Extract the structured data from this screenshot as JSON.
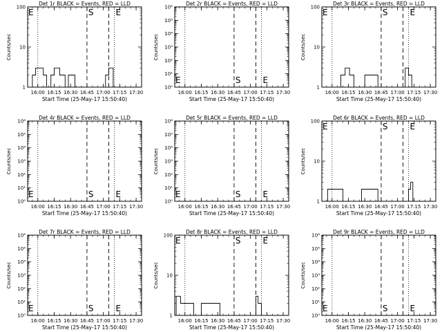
{
  "axis_common": {
    "xlabel": "Start Time (25-May-17 15:50:40)",
    "ylabel": "Counts/sec",
    "x_range": [
      "15:50:40",
      "17:35:00"
    ],
    "x_ticks": [
      "16:00",
      "16:15",
      "16:30",
      "16:45",
      "17:00",
      "17:15",
      "17:30"
    ],
    "dotted_lines": [
      "16:00",
      "17:10",
      "17:35"
    ],
    "dashed_lines": [
      "16:45",
      "17:05"
    ],
    "markers": [
      {
        "label": "S",
        "at": "16:45"
      },
      {
        "label": "E",
        "at": "17:10"
      }
    ]
  },
  "chart_data": [
    {
      "type": "line",
      "title": "Det 1r BLACK = Events, RED = LLD",
      "ylabel": "Counts/sec",
      "xlabel": "Start Time (25-May-17 15:50:40)",
      "log_scale": true,
      "ylim": [
        1,
        100
      ],
      "y_ticks": [
        "1",
        "10",
        "100"
      ],
      "marker_row": "top",
      "series": [
        {
          "name": "Events",
          "color": "#000000",
          "x": [
            "15:55",
            "15:55",
            "15:58",
            "15:58",
            "16:05",
            "16:05",
            "16:08",
            "16:08",
            "16:12",
            "16:12",
            "16:15",
            "16:15",
            "16:20",
            "16:20",
            "16:25",
            "16:25",
            "16:28",
            "16:28",
            "16:34",
            "16:34",
            "16:38",
            "16:38",
            "17:02",
            "17:02",
            "17:05",
            "17:05",
            "17:09",
            "17:09"
          ],
          "y": [
            1,
            2,
            2,
            3,
            3,
            2,
            2,
            1,
            1,
            2,
            2,
            3,
            3,
            2,
            2,
            1,
            1,
            2,
            2,
            1,
            1,
            1,
            1,
            2,
            2,
            3,
            3,
            1
          ]
        }
      ]
    },
    {
      "type": "line",
      "title": "Det 2r BLACK = Events, RED = LLD",
      "ylabel": "Counts/sec",
      "xlabel": "Start Time (25-May-17 15:50:40)",
      "log_scale": true,
      "ylim": [
        1,
        1000000
      ],
      "y_ticks": [
        "10⁰",
        "10¹",
        "10²",
        "10³",
        "10⁴",
        "10⁵",
        "10⁶"
      ],
      "marker_row": "bottom",
      "series": [
        {
          "name": "Events",
          "color": "#000000",
          "x": [],
          "y": []
        }
      ]
    },
    {
      "type": "line",
      "title": "Det 3r BLACK = Events, RED = LLD",
      "ylabel": "Counts/sec",
      "xlabel": "Start Time (25-May-17 15:50:40)",
      "log_scale": true,
      "ylim": [
        1,
        100
      ],
      "y_ticks": [
        "1",
        "10",
        "100"
      ],
      "marker_row": "top",
      "series": [
        {
          "name": "Events",
          "color": "#000000",
          "x": [
            "16:08",
            "16:08",
            "16:12",
            "16:12",
            "16:16",
            "16:16",
            "16:20",
            "16:20",
            "16:30",
            "16:30",
            "16:42",
            "16:42",
            "17:07",
            "17:07",
            "17:10",
            "17:10",
            "17:13",
            "17:13"
          ],
          "y": [
            1,
            2,
            2,
            3,
            3,
            2,
            2,
            1,
            1,
            2,
            2,
            1,
            1,
            3,
            3,
            2,
            2,
            1
          ]
        }
      ]
    },
    {
      "type": "line",
      "title": "Det 4r BLACK = Events, RED = LLD",
      "ylabel": "Counts/sec",
      "xlabel": "Start Time (25-May-17 15:50:40)",
      "log_scale": true,
      "ylim": [
        1,
        1000000
      ],
      "y_ticks": [
        "10⁰",
        "10¹",
        "10²",
        "10³",
        "10⁴",
        "10⁵",
        "10⁶"
      ],
      "marker_row": "bottom",
      "series": [
        {
          "name": "Events",
          "color": "#000000",
          "x": [],
          "y": []
        }
      ]
    },
    {
      "type": "line",
      "title": "Det 5r BLACK = Events, RED = LLD",
      "ylabel": "Counts/sec",
      "xlabel": "Start Time (25-May-17 15:50:40)",
      "log_scale": true,
      "ylim": [
        1,
        1000000
      ],
      "y_ticks": [
        "10⁰",
        "10¹",
        "10²",
        "10³",
        "10⁴",
        "10⁵",
        "10⁶"
      ],
      "marker_row": "bottom",
      "series": [
        {
          "name": "Events",
          "color": "#000000",
          "x": [],
          "y": []
        }
      ]
    },
    {
      "type": "line",
      "title": "Det 6r BLACK = Events, RED = LLD",
      "ylabel": "Counts/sec",
      "xlabel": "Start Time (25-May-17 15:50:40)",
      "log_scale": true,
      "ylim": [
        1,
        100
      ],
      "y_ticks": [
        "1",
        "10",
        "100"
      ],
      "marker_row": "top",
      "series": [
        {
          "name": "Events",
          "color": "#000000",
          "x": [
            "15:56",
            "15:56",
            "16:10",
            "16:10",
            "16:27",
            "16:27",
            "16:42",
            "16:42",
            "17:10",
            "17:10",
            "17:12",
            "17:12",
            "17:14",
            "17:14"
          ],
          "y": [
            1,
            2,
            2,
            1,
            1,
            2,
            2,
            1,
            1,
            2,
            2,
            3,
            3,
            1
          ]
        }
      ]
    },
    {
      "type": "line",
      "title": "Det 7r BLACK = Events, RED = LLD",
      "ylabel": "Counts/sec",
      "xlabel": "Start Time (25-May-17 15:50:40)",
      "log_scale": true,
      "ylim": [
        1,
        1000000
      ],
      "y_ticks": [
        "10⁰",
        "10¹",
        "10²",
        "10³",
        "10⁴",
        "10⁵",
        "10⁶"
      ],
      "marker_row": "bottom",
      "series": [
        {
          "name": "Events",
          "color": "#000000",
          "x": [],
          "y": []
        }
      ]
    },
    {
      "type": "line",
      "title": "Det 8r BLACK = Events, RED = LLD",
      "ylabel": "Counts/sec",
      "xlabel": "Start Time (25-May-17 15:50:40)",
      "log_scale": true,
      "ylim": [
        1,
        100
      ],
      "y_ticks": [
        "1",
        "10",
        "100"
      ],
      "marker_row": "top",
      "series": [
        {
          "name": "Events",
          "color": "#000000",
          "x": [
            "15:52",
            "15:52",
            "15:56",
            "15:56",
            "16:00",
            "16:00",
            "16:08",
            "16:08",
            "16:15",
            "16:15",
            "16:32",
            "16:32",
            "17:05",
            "17:05",
            "17:07",
            "17:07",
            "17:10",
            "17:10"
          ],
          "y": [
            1,
            3,
            3,
            2,
            2,
            2,
            2,
            1,
            1,
            2,
            2,
            1,
            1,
            3,
            3,
            2,
            2,
            1
          ]
        }
      ]
    },
    {
      "type": "line",
      "title": "Det 9r BLACK = Events, RED = LLD",
      "ylabel": "Counts/sec",
      "xlabel": "Start Time (25-May-17 15:50:40)",
      "log_scale": true,
      "ylim": [
        1,
        1000000
      ],
      "y_ticks": [
        "10⁰",
        "10¹",
        "10²",
        "10³",
        "10⁴",
        "10⁵",
        "10⁶"
      ],
      "marker_row": "bottom",
      "series": [
        {
          "name": "Events",
          "color": "#000000",
          "x": [],
          "y": []
        }
      ]
    }
  ]
}
